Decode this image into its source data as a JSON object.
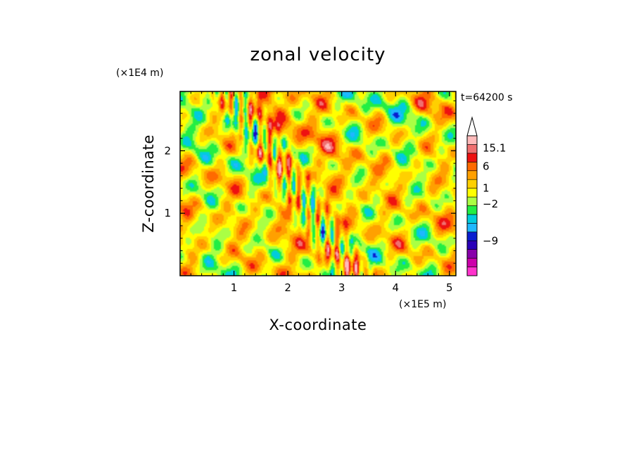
{
  "chart_data": {
    "type": "heatmap",
    "title": "zonal velocity",
    "xlabel": "X-coordinate",
    "ylabel": "Z-coordinate",
    "x_scale_label": "(×1E5 m)",
    "y_scale_label": "(×1E4 m)",
    "time_label": "t=64200 s",
    "xlim": [
      0,
      5.12
    ],
    "ylim": [
      0,
      2.95
    ],
    "x_ticks": [
      {
        "value": 1,
        "label": "1"
      },
      {
        "value": 2,
        "label": "2"
      },
      {
        "value": 3,
        "label": "3"
      },
      {
        "value": 4,
        "label": "4"
      },
      {
        "value": 5,
        "label": "5"
      }
    ],
    "y_ticks": [
      {
        "value": 1,
        "label": "1"
      },
      {
        "value": 2,
        "label": "2"
      }
    ],
    "colorbar": {
      "levels": [
        {
          "color": "#ff33cc"
        },
        {
          "color": "#cc00aa"
        },
        {
          "color": "#8800aa"
        },
        {
          "color": "#2a00b8"
        },
        {
          "color": "#0a1ecf"
        },
        {
          "color": "#1fb8ff"
        },
        {
          "color": "#00ccdd"
        },
        {
          "color": "#22ee44"
        },
        {
          "color": "#aaff44"
        },
        {
          "color": "#ffff00"
        },
        {
          "color": "#ffd000"
        },
        {
          "color": "#ffa000"
        },
        {
          "color": "#ff6a00"
        },
        {
          "color": "#ee1111"
        },
        {
          "color": "#f07070"
        },
        {
          "color": "#ffbbbb"
        }
      ],
      "extend_max": true,
      "labels": [
        {
          "text": "15.1",
          "level": 14.6
        },
        {
          "text": "6",
          "level": 12.5
        },
        {
          "text": "1",
          "level": 10.0
        },
        {
          "text": "−2",
          "level": 8.2
        },
        {
          "text": "−9",
          "level": 4.0
        }
      ]
    }
  }
}
